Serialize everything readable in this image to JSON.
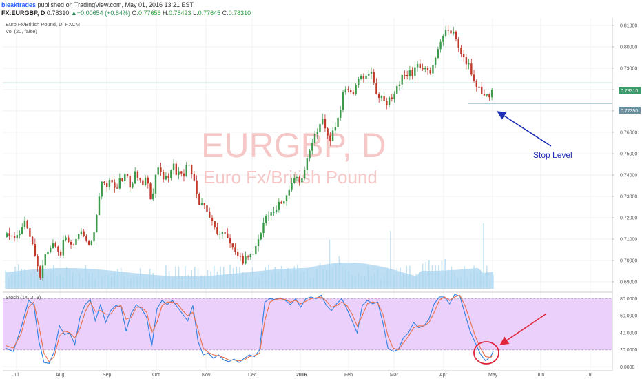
{
  "header": {
    "author": "bleaktrades",
    "published": " published on TradingView.com, May 01, 2016 13:21 EST",
    "symbol": "FX:EURGBP, D",
    "last": "0.78310",
    "arrow": "▲",
    "change": "+0.00654 (+0.84%)",
    "o_label": "O:",
    "o_value": "0.77656",
    "h_label": "H:",
    "h_value": "0.78423",
    "l_label": "L:",
    "l_value": "0.77645",
    "c_label": "C:",
    "c_value": "0.78310"
  },
  "legend": {
    "title": "Euro Fx/British Pound, D, FXCM",
    "volume": "Vol (20, false)",
    "stoch": "Stoch (14, 3, 3)"
  },
  "watermark": {
    "line1": "EURGBP, D",
    "line2": "Euro Fx/British Pound"
  },
  "annotations": {
    "stop_label": "Stop Level"
  },
  "price_tags": {
    "last": "0.78310",
    "stop": "0.77350"
  },
  "colors": {
    "up": "#3a9a4a",
    "down": "#c0392b",
    "volume": "#8fcbe8",
    "volume_ma": "#a8d4ef",
    "stoch_fill": "#e8c8f8",
    "k_line": "#2f7fe0",
    "d_line": "#e8704a",
    "arrow_blue": "#1f2fb5",
    "arrow_red": "#e0263b",
    "last_tag": "#3a9a6a",
    "stop_tag": "#6a8f9f"
  },
  "chart_data": [
    {
      "type": "candlestick",
      "title": "Euro Fx/British Pound, D, FXCM",
      "x_axis_labels": [
        "Jul",
        "Aug",
        "Sep",
        "Oct",
        "Nov",
        "Dec",
        "2016",
        "Feb",
        "Mar",
        "Apr",
        "May",
        "Jun",
        "Jul"
      ],
      "y_axis_labels": [
        "0.69000",
        "0.70000",
        "0.71000",
        "0.72000",
        "0.73000",
        "0.74000",
        "0.75000",
        "0.76000",
        "0.77000",
        "0.78000",
        "0.79000",
        "0.80000",
        "0.81000"
      ],
      "ylim": [
        0.6855,
        0.8135
      ],
      "close_path": [
        [
          0,
          0.711
        ],
        [
          8,
          0.712
        ],
        [
          12,
          0.711
        ],
        [
          15,
          0.719
        ],
        [
          20,
          0.71
        ],
        [
          24,
          0.7
        ],
        [
          27,
          0.694
        ],
        [
          32,
          0.704
        ],
        [
          38,
          0.707
        ],
        [
          42,
          0.701
        ],
        [
          46,
          0.711
        ],
        [
          50,
          0.71
        ],
        [
          54,
          0.706
        ],
        [
          58,
          0.716
        ],
        [
          62,
          0.712
        ],
        [
          66,
          0.708
        ],
        [
          70,
          0.716
        ],
        [
          74,
          0.737
        ],
        [
          78,
          0.735
        ],
        [
          82,
          0.739
        ],
        [
          86,
          0.733
        ],
        [
          90,
          0.738
        ],
        [
          94,
          0.74
        ],
        [
          98,
          0.734
        ],
        [
          102,
          0.742
        ],
        [
          106,
          0.734
        ],
        [
          110,
          0.738
        ],
        [
          114,
          0.728
        ],
        [
          118,
          0.742
        ],
        [
          122,
          0.74
        ],
        [
          126,
          0.738
        ],
        [
          130,
          0.745
        ],
        [
          134,
          0.741
        ],
        [
          138,
          0.739
        ],
        [
          142,
          0.745
        ],
        [
          146,
          0.738
        ],
        [
          150,
          0.729
        ],
        [
          154,
          0.725
        ],
        [
          158,
          0.722
        ],
        [
          162,
          0.717
        ],
        [
          166,
          0.711
        ],
        [
          170,
          0.713
        ],
        [
          174,
          0.708
        ],
        [
          178,
          0.706
        ],
        [
          182,
          0.701
        ],
        [
          186,
          0.7
        ],
        [
          190,
          0.704
        ],
        [
          194,
          0.705
        ],
        [
          198,
          0.71
        ],
        [
          202,
          0.722
        ],
        [
          206,
          0.72
        ],
        [
          210,
          0.724
        ],
        [
          214,
          0.727
        ],
        [
          218,
          0.73
        ],
        [
          222,
          0.734
        ],
        [
          226,
          0.74
        ],
        [
          230,
          0.736
        ],
        [
          234,
          0.745
        ],
        [
          238,
          0.754
        ],
        [
          242,
          0.76
        ],
        [
          246,
          0.766
        ],
        [
          250,
          0.76
        ],
        [
          254,
          0.757
        ],
        [
          258,
          0.765
        ],
        [
          262,
          0.775
        ],
        [
          266,
          0.782
        ],
        [
          270,
          0.777
        ],
        [
          274,
          0.785
        ],
        [
          278,
          0.785
        ],
        [
          282,
          0.789
        ],
        [
          286,
          0.786
        ],
        [
          290,
          0.776
        ],
        [
          294,
          0.776
        ],
        [
          298,
          0.774
        ],
        [
          302,
          0.777
        ],
        [
          306,
          0.782
        ],
        [
          310,
          0.786
        ],
        [
          314,
          0.787
        ],
        [
          318,
          0.788
        ],
        [
          322,
          0.791
        ],
        [
          326,
          0.79
        ],
        [
          330,
          0.787
        ],
        [
          334,
          0.791
        ],
        [
          338,
          0.799
        ],
        [
          342,
          0.806
        ],
        [
          346,
          0.808
        ],
        [
          350,
          0.806
        ],
        [
          354,
          0.798
        ],
        [
          358,
          0.793
        ],
        [
          362,
          0.79
        ],
        [
          366,
          0.784
        ],
        [
          370,
          0.779
        ],
        [
          374,
          0.776
        ],
        [
          378,
          0.777
        ],
        [
          380,
          0.7831
        ]
      ],
      "last_price": 0.7831,
      "stop_level": 0.7735,
      "volume_note": "volume histogram with moving-average area at panel bottom"
    },
    {
      "type": "line",
      "title": "Stoch (14, 3, 3)",
      "y_axis_labels": [
        "0.0000",
        "20.0000",
        "40.0000",
        "60.0000",
        "80.0000"
      ],
      "ylim": [
        -3,
        86
      ],
      "bands": [
        20,
        80
      ],
      "series": [
        {
          "values": [
            [
              0,
              22
            ],
            [
              6,
              18
            ],
            [
              12,
              45
            ],
            [
              18,
              78
            ],
            [
              22,
              73
            ],
            [
              26,
              30
            ],
            [
              30,
              5
            ],
            [
              34,
              4
            ],
            [
              38,
              18
            ],
            [
              42,
              48
            ],
            [
              46,
              38
            ],
            [
              50,
              40
            ],
            [
              54,
              26
            ],
            [
              58,
              58
            ],
            [
              62,
              73
            ],
            [
              66,
              79
            ],
            [
              70,
              54
            ],
            [
              74,
              73
            ],
            [
              78,
              52
            ],
            [
              82,
              66
            ],
            [
              86,
              72
            ],
            [
              90,
              70
            ],
            [
              94,
              42
            ],
            [
              98,
              63
            ],
            [
              102,
              73
            ],
            [
              106,
              68
            ],
            [
              110,
              58
            ],
            [
              114,
              24
            ],
            [
              118,
              68
            ],
            [
              122,
              78
            ],
            [
              126,
              73
            ],
            [
              130,
              78
            ],
            [
              134,
              70
            ],
            [
              138,
              62
            ],
            [
              142,
              54
            ],
            [
              146,
              72
            ],
            [
              150,
              30
            ],
            [
              154,
              14
            ],
            [
              158,
              16
            ],
            [
              162,
              10
            ],
            [
              166,
              14
            ],
            [
              170,
              8
            ],
            [
              174,
              6
            ],
            [
              178,
              9
            ],
            [
              182,
              5
            ],
            [
              186,
              10
            ],
            [
              190,
              14
            ],
            [
              194,
              12
            ],
            [
              198,
              20
            ],
            [
              202,
              76
            ],
            [
              206,
              80
            ],
            [
              210,
              79
            ],
            [
              214,
              81
            ],
            [
              218,
              78
            ],
            [
              222,
              73
            ],
            [
              226,
              80
            ],
            [
              230,
              70
            ],
            [
              234,
              80
            ],
            [
              238,
              82
            ],
            [
              242,
              80
            ],
            [
              246,
              84
            ],
            [
              250,
              72
            ],
            [
              254,
              66
            ],
            [
              258,
              74
            ],
            [
              262,
              80
            ],
            [
              266,
              68
            ],
            [
              270,
              54
            ],
            [
              274,
              40
            ],
            [
              278,
              72
            ],
            [
              282,
              78
            ],
            [
              286,
              74
            ],
            [
              290,
              76
            ],
            [
              294,
              52
            ],
            [
              298,
              22
            ],
            [
              302,
              18
            ],
            [
              306,
              20
            ],
            [
              310,
              34
            ],
            [
              314,
              40
            ],
            [
              318,
              52
            ],
            [
              322,
              46
            ],
            [
              326,
              48
            ],
            [
              330,
              56
            ],
            [
              334,
              74
            ],
            [
              338,
              82
            ],
            [
              342,
              82
            ],
            [
              346,
              74
            ],
            [
              350,
              85
            ],
            [
              354,
              83
            ],
            [
              358,
              62
            ],
            [
              362,
              42
            ],
            [
              366,
              28
            ],
            [
              370,
              15
            ],
            [
              374,
              7
            ],
            [
              378,
              12
            ],
            [
              380,
              18
            ]
          ]
        },
        {
          "values": [
            [
              0,
              25
            ],
            [
              6,
              22
            ],
            [
              12,
              38
            ],
            [
              18,
              70
            ],
            [
              22,
              76
            ],
            [
              26,
              48
            ],
            [
              30,
              16
            ],
            [
              34,
              6
            ],
            [
              38,
              12
            ],
            [
              42,
              36
            ],
            [
              46,
              42
            ],
            [
              50,
              40
            ],
            [
              54,
              34
            ],
            [
              58,
              45
            ],
            [
              62,
              64
            ],
            [
              66,
              76
            ],
            [
              70,
              65
            ],
            [
              74,
              66
            ],
            [
              78,
              62
            ],
            [
              82,
              62
            ],
            [
              86,
              70
            ],
            [
              90,
              72
            ],
            [
              94,
              56
            ],
            [
              98,
              58
            ],
            [
              102,
              70
            ],
            [
              106,
              70
            ],
            [
              110,
              64
            ],
            [
              114,
              40
            ],
            [
              118,
              52
            ],
            [
              122,
              72
            ],
            [
              126,
              76
            ],
            [
              130,
              76
            ],
            [
              134,
              74
            ],
            [
              138,
              66
            ],
            [
              142,
              60
            ],
            [
              146,
              64
            ],
            [
              150,
              44
            ],
            [
              154,
              22
            ],
            [
              158,
              17
            ],
            [
              162,
              14
            ],
            [
              166,
              13
            ],
            [
              170,
              11
            ],
            [
              174,
              8
            ],
            [
              178,
              8
            ],
            [
              182,
              7
            ],
            [
              186,
              8
            ],
            [
              190,
              12
            ],
            [
              194,
              13
            ],
            [
              198,
              16
            ],
            [
              202,
              54
            ],
            [
              206,
              76
            ],
            [
              210,
              79
            ],
            [
              214,
              80
            ],
            [
              218,
              79
            ],
            [
              222,
              76
            ],
            [
              226,
              78
            ],
            [
              230,
              74
            ],
            [
              234,
              77
            ],
            [
              238,
              80
            ],
            [
              242,
              81
            ],
            [
              246,
              82
            ],
            [
              250,
              77
            ],
            [
              254,
              70
            ],
            [
              258,
              72
            ],
            [
              262,
              76
            ],
            [
              266,
              72
            ],
            [
              270,
              62
            ],
            [
              274,
              48
            ],
            [
              278,
              60
            ],
            [
              282,
              74
            ],
            [
              286,
              76
            ],
            [
              290,
              75
            ],
            [
              294,
              62
            ],
            [
              298,
              36
            ],
            [
              302,
              22
            ],
            [
              306,
              20
            ],
            [
              310,
              28
            ],
            [
              314,
              36
            ],
            [
              318,
              46
            ],
            [
              322,
              48
            ],
            [
              326,
              48
            ],
            [
              330,
              52
            ],
            [
              334,
              64
            ],
            [
              338,
              78
            ],
            [
              342,
              82
            ],
            [
              346,
              78
            ],
            [
              350,
              82
            ],
            [
              354,
              84
            ],
            [
              358,
              72
            ],
            [
              362,
              54
            ],
            [
              366,
              36
            ],
            [
              370,
              22
            ],
            [
              374,
              12
            ],
            [
              378,
              11
            ],
            [
              380,
              14
            ]
          ]
        }
      ]
    }
  ]
}
